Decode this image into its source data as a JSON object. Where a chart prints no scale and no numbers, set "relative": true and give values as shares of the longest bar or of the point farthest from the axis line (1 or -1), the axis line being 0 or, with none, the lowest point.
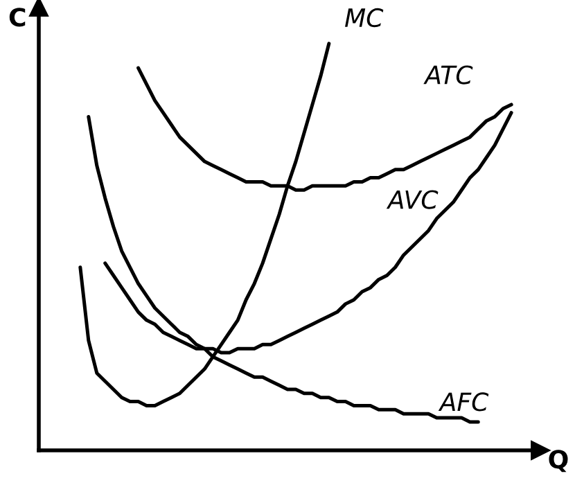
{
  "chart_data": {
    "type": "line",
    "relative": true,
    "xlabel": "Q",
    "ylabel": "C",
    "line_style": "solid",
    "categories": [
      null,
      null,
      null,
      null,
      null,
      null,
      null,
      null,
      null,
      null,
      null,
      null,
      null,
      null,
      null,
      null,
      null,
      null,
      null,
      null,
      null,
      null,
      null,
      null,
      null,
      null,
      null,
      null,
      null,
      null,
      null,
      null,
      null,
      null,
      null,
      null,
      null,
      null,
      null,
      null,
      null,
      null,
      null,
      null,
      null,
      null,
      null,
      null,
      null,
      null,
      null,
      null,
      null,
      null,
      null,
      null,
      null,
      null,
      null,
      null
    ],
    "series": [
      {
        "name": "MC",
        "color": "#000000",
        "values": [
          null,
          null,
          null,
          null,
          null,
          0.45,
          0.27,
          0.19,
          0.17,
          0.15,
          0.13,
          0.12,
          0.12,
          0.11,
          0.11,
          0.12,
          0.13,
          0.14,
          0.16,
          0.18,
          0.2,
          0.23,
          0.26,
          0.29,
          0.32,
          0.37,
          0.41,
          0.46,
          0.52,
          0.58,
          0.65,
          0.71,
          0.78,
          0.85,
          0.92,
          1,
          null,
          null,
          null,
          null,
          null,
          null,
          null,
          null,
          null,
          null,
          null,
          null,
          null,
          null,
          null,
          null,
          null,
          null,
          null,
          null,
          null,
          null,
          null,
          null
        ]
      },
      {
        "name": "ATC",
        "color": "#000000",
        "values": [
          null,
          null,
          null,
          null,
          null,
          null,
          null,
          null,
          null,
          null,
          null,
          null,
          0.94,
          0.9,
          0.86,
          0.83,
          0.8,
          0.77,
          0.75,
          0.73,
          0.71,
          0.7,
          0.69,
          0.68,
          0.67,
          0.66,
          0.66,
          0.66,
          0.65,
          0.65,
          0.65,
          0.64,
          0.64,
          0.65,
          0.65,
          0.65,
          0.65,
          0.65,
          0.66,
          0.66,
          0.67,
          0.67,
          0.68,
          0.69,
          0.69,
          0.7,
          0.71,
          0.72,
          0.73,
          0.74,
          0.75,
          0.76,
          0.77,
          0.79,
          0.81,
          0.82,
          0.84,
          0.85,
          null,
          null
        ]
      },
      {
        "name": "AVC",
        "color": "#000000",
        "values": [
          null,
          null,
          null,
          null,
          null,
          null,
          null,
          null,
          0.46,
          0.43,
          0.4,
          0.37,
          0.34,
          0.32,
          0.31,
          0.29,
          0.28,
          0.27,
          0.26,
          0.25,
          0.25,
          0.25,
          0.24,
          0.24,
          0.25,
          0.25,
          0.25,
          0.26,
          0.26,
          0.27,
          0.28,
          0.29,
          0.3,
          0.31,
          0.32,
          0.33,
          0.34,
          0.36,
          0.37,
          0.39,
          0.4,
          0.42,
          0.43,
          0.45,
          0.48,
          0.5,
          0.52,
          0.54,
          0.57,
          0.59,
          0.61,
          0.64,
          0.67,
          0.69,
          0.72,
          0.75,
          0.79,
          0.83,
          null,
          null
        ]
      },
      {
        "name": "AFC",
        "color": "#000000",
        "values": [
          null,
          null,
          null,
          null,
          null,
          null,
          0.82,
          0.7,
          0.62,
          0.55,
          0.49,
          0.45,
          0.41,
          0.38,
          0.35,
          0.33,
          0.31,
          0.29,
          0.28,
          0.26,
          0.25,
          0.23,
          0.22,
          0.21,
          0.2,
          0.19,
          0.18,
          0.18,
          0.17,
          0.16,
          0.15,
          0.15,
          0.14,
          0.14,
          0.13,
          0.13,
          0.12,
          0.12,
          0.11,
          0.11,
          0.11,
          0.1,
          0.1,
          0.1,
          0.09,
          0.09,
          0.09,
          0.09,
          0.08,
          0.08,
          0.08,
          0.08,
          0.07,
          0.07,
          null,
          null,
          null,
          null,
          null,
          null
        ]
      }
    ]
  }
}
